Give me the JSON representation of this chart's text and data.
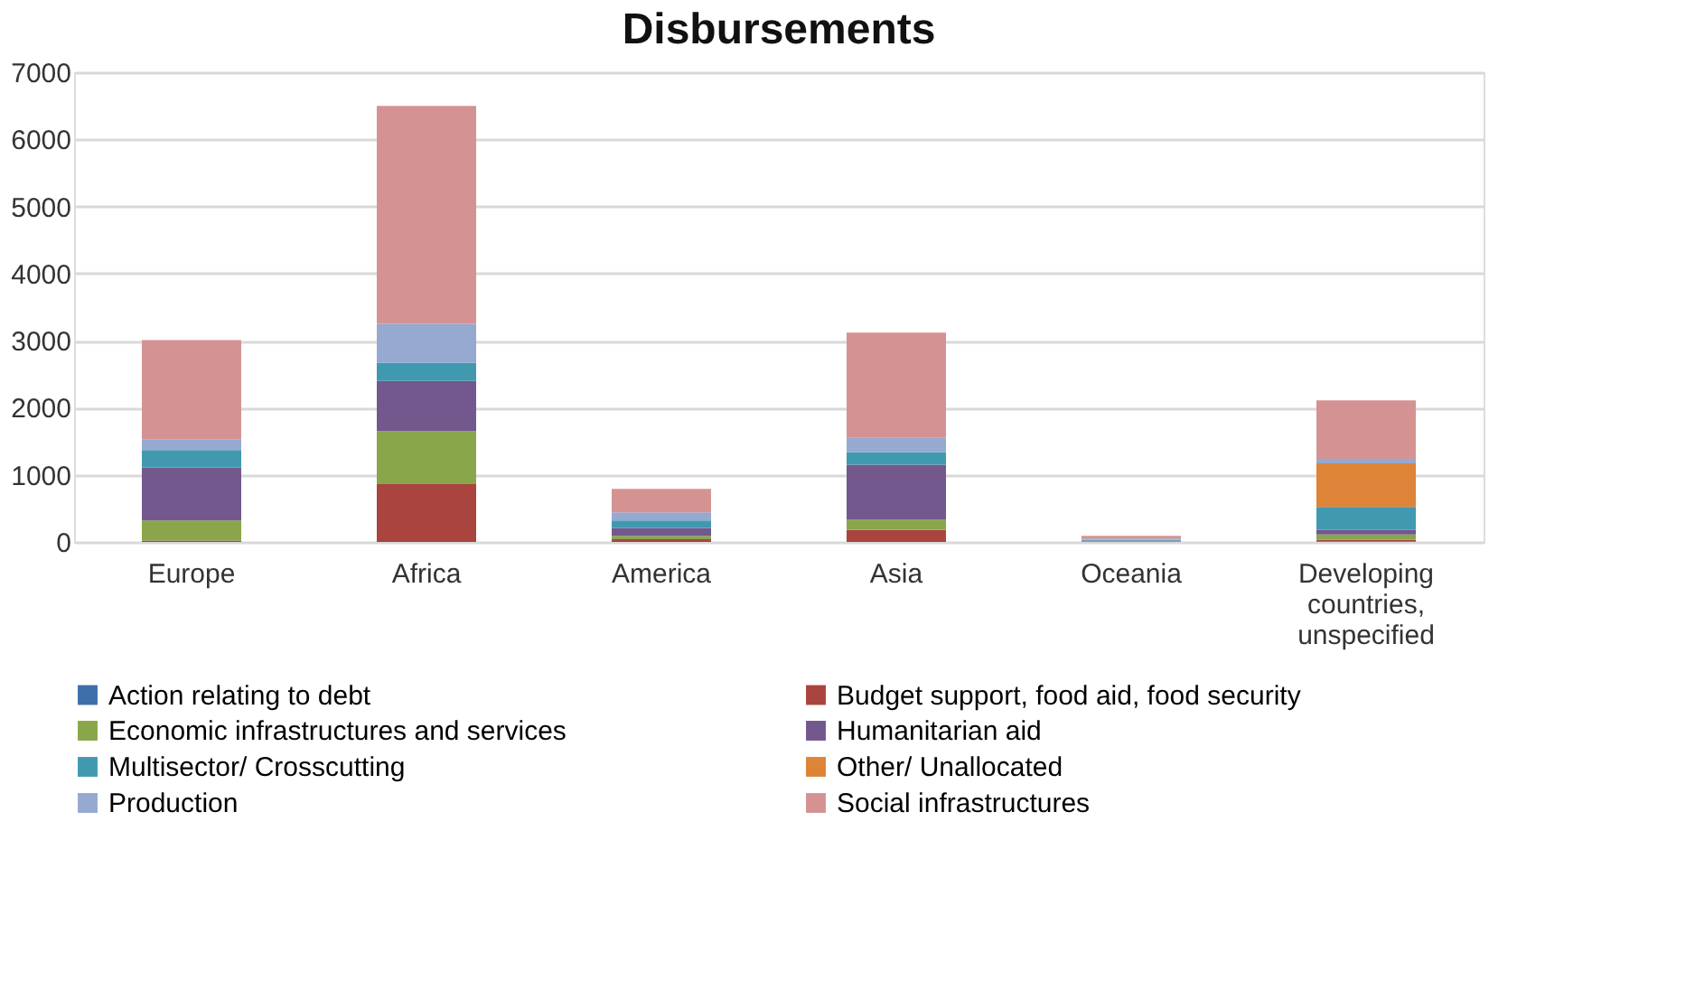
{
  "chart_data": {
    "type": "bar",
    "title": "Disbursements",
    "stacked": true,
    "categories": [
      "Europe",
      "Africa",
      "America",
      "Asia",
      "Oceania",
      "Developing countries, unspecified"
    ],
    "series": [
      {
        "name": "Action relating to debt",
        "color": "#3e6fa8",
        "values": [
          0,
          0,
          0,
          0,
          0,
          10
        ]
      },
      {
        "name": "Budget support, food aid, food security",
        "color": "#a9443f",
        "values": [
          20,
          860,
          40,
          180,
          0,
          20
        ]
      },
      {
        "name": "Economic infrastructures and services",
        "color": "#8aa64b",
        "values": [
          300,
          790,
          50,
          150,
          10,
          80
        ]
      },
      {
        "name": "Humanitarian aid",
        "color": "#72588c",
        "values": [
          790,
          750,
          120,
          820,
          10,
          70
        ]
      },
      {
        "name": "Multisector/ Crosscutting",
        "color": "#4199b0",
        "values": [
          260,
          270,
          110,
          190,
          10,
          340
        ]
      },
      {
        "name": "Other/ Unallocated",
        "color": "#dd8438",
        "values": [
          0,
          0,
          0,
          0,
          0,
          650
        ]
      },
      {
        "name": "Production",
        "color": "#95a9d1",
        "values": [
          160,
          580,
          120,
          210,
          20,
          70
        ]
      },
      {
        "name": "Social infrastructures",
        "color": "#d49392",
        "values": [
          1480,
          3250,
          350,
          1570,
          40,
          870
        ]
      }
    ],
    "ylim": [
      0,
      7000
    ],
    "yticks": [
      0,
      1000,
      2000,
      3000,
      4000,
      5000,
      6000,
      7000
    ],
    "grid": "y",
    "legend": "bottom"
  }
}
